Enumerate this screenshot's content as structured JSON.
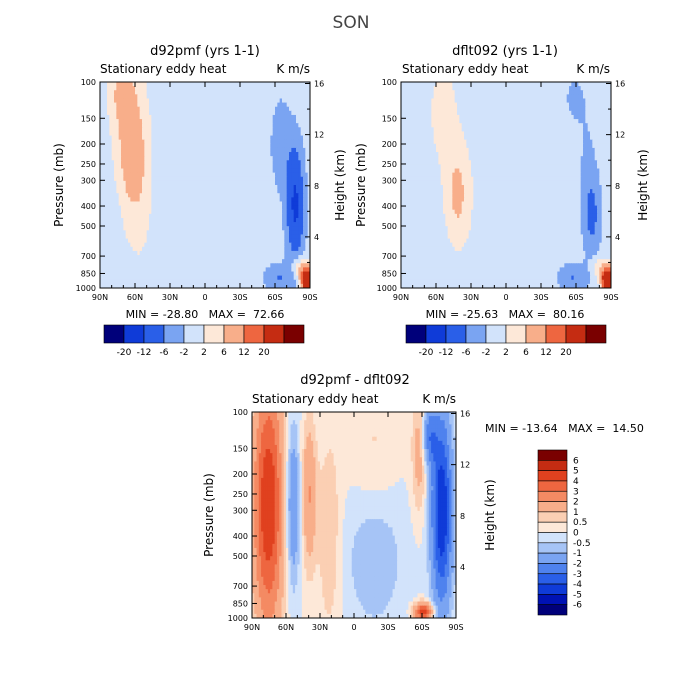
{
  "figure_title": "SON",
  "panels": {
    "top_left": {
      "title": "d92pmf (yrs 1-1)",
      "left_label": "Stationary eddy heat",
      "units": "K m/s",
      "ylabel": "Pressure (mb)",
      "ylabel_right": "Height (km)",
      "min_max": "MIN = -28.80   MAX =  72.66"
    },
    "top_right": {
      "title": "dflt092 (yrs 1-1)",
      "left_label": "Stationary eddy heat",
      "units": "K m/s",
      "ylabel": "Pressure (mb)",
      "ylabel_right": "Height (km)",
      "min_max": "MIN = -25.63   MAX =  80.16"
    },
    "bottom": {
      "title": "d92pmf - dflt092",
      "left_label": "Stationary eddy heat",
      "units": "K m/s",
      "ylabel": "Pressure (mb)",
      "ylabel_right": "Height (km)",
      "min_max": "MIN = -13.64   MAX =  14.50"
    }
  },
  "colors": {
    "neg": [
      "#00007a",
      "#0012b4",
      "#0f3bd8",
      "#2a5fe8",
      "#4f82ee",
      "#7aa4f2",
      "#a6c4f6",
      "#d2e3fb"
    ],
    "pos": [
      "#fde8d8",
      "#fbcfb3",
      "#f8ae8a",
      "#f48a63",
      "#ee6640",
      "#e0411f",
      "#c52c12",
      "#a01606",
      "#7a0000"
    ]
  },
  "chart_data": [
    {
      "type": "heatmap",
      "name": "d92pmf",
      "title": "d92pmf (yrs 1-1)",
      "variable": "Stationary eddy heat",
      "units": "K m/s",
      "xlabel": "",
      "ylabel": "Pressure (mb)",
      "ylabel_right": "Height (km)",
      "x_ticks": [
        "90N",
        "60N",
        "30N",
        "0",
        "30S",
        "60S",
        "90S"
      ],
      "x_range_deg": [
        90,
        -90
      ],
      "y_ticks": [
        100,
        150,
        200,
        250,
        300,
        400,
        500,
        700,
        850,
        1000
      ],
      "y_range_mb": [
        100,
        1000
      ],
      "height_ticks_km": [
        4,
        8,
        12,
        16
      ],
      "colorbar_labels": [
        "-20",
        "-12",
        "-6",
        "-2",
        "2",
        "6",
        "12",
        "20"
      ],
      "min": -28.8,
      "max": 72.66,
      "field_features_approx": [
        {
          "lat": 63,
          "p_mb": 180,
          "value": 8
        },
        {
          "lat": 48,
          "p_mb": 400,
          "value": 3
        },
        {
          "lat": -74,
          "p_mb": 400,
          "value": -15
        },
        {
          "lat": -82,
          "p_mb": 950,
          "value": 40
        }
      ]
    },
    {
      "type": "heatmap",
      "name": "dflt092",
      "title": "dflt092 (yrs 1-1)",
      "variable": "Stationary eddy heat",
      "units": "K m/s",
      "xlabel": "",
      "ylabel": "Pressure (mb)",
      "ylabel_right": "Height (km)",
      "x_ticks": [
        "90N",
        "60N",
        "30N",
        "0",
        "30S",
        "60S",
        "90S"
      ],
      "x_range_deg": [
        90,
        -90
      ],
      "y_ticks": [
        100,
        150,
        200,
        250,
        300,
        400,
        500,
        700,
        850,
        1000
      ],
      "y_range_mb": [
        100,
        1000
      ],
      "height_ticks_km": [
        4,
        8,
        12,
        16
      ],
      "colorbar_labels": [
        "-20",
        "-12",
        "-6",
        "-2",
        "2",
        "6",
        "12",
        "20"
      ],
      "min": -25.63,
      "max": 80.16,
      "field_features_approx": [
        {
          "lat": 48,
          "p_mb": 330,
          "value": 7
        },
        {
          "lat": 62,
          "p_mb": 130,
          "value": 3
        },
        {
          "lat": -74,
          "p_mb": 400,
          "value": -9
        },
        {
          "lat": -82,
          "p_mb": 950,
          "value": 45
        }
      ]
    },
    {
      "type": "heatmap",
      "name": "d92pmf - dflt092",
      "title": "d92pmf - dflt092",
      "variable": "Stationary eddy heat",
      "units": "K m/s",
      "xlabel": "",
      "ylabel": "Pressure (mb)",
      "ylabel_right": "Height (km)",
      "x_ticks": [
        "90N",
        "60N",
        "30N",
        "0",
        "30S",
        "60S",
        "90S"
      ],
      "x_range_deg": [
        90,
        -90
      ],
      "y_ticks": [
        100,
        150,
        200,
        250,
        300,
        400,
        500,
        700,
        850,
        1000
      ],
      "y_range_mb": [
        100,
        1000
      ],
      "height_ticks_km": [
        4,
        8,
        12,
        16
      ],
      "colorbar_labels": [
        "6",
        "5",
        "4",
        "3",
        "2",
        "1",
        "0.5",
        "0",
        "-0.5",
        "-1",
        "-2",
        "-3",
        "-4",
        "-5",
        "-6"
      ],
      "min": -13.64,
      "max": 14.5,
      "field_features_approx": [
        {
          "lat": 72,
          "p_mb": 300,
          "value": 5
        },
        {
          "lat": 55,
          "p_mb": 400,
          "value": -2
        },
        {
          "lat": 32,
          "p_mb": 280,
          "value": 2.5
        },
        {
          "lat": -60,
          "p_mb": 200,
          "value": 1.5
        },
        {
          "lat": -78,
          "p_mb": 450,
          "value": -5
        }
      ]
    }
  ]
}
